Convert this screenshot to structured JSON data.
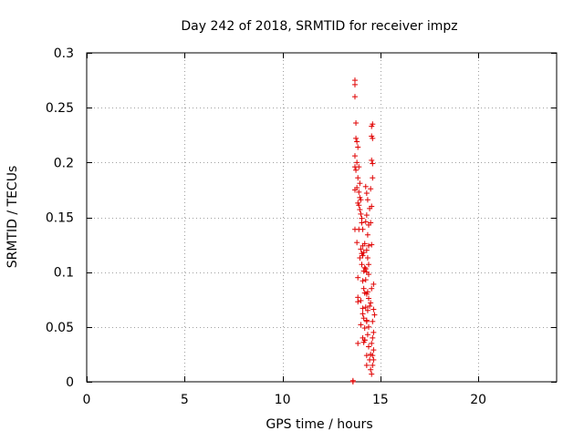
{
  "chart_data": {
    "type": "scatter",
    "title": "Day 242 of 2018, SRMTID for receiver impz",
    "xlabel": "GPS time / hours",
    "ylabel": "SRMTID / TECUs",
    "xlim": [
      0,
      24
    ],
    "ylim": [
      0,
      0.3
    ],
    "x_ticks": [
      0,
      5,
      10,
      15,
      20
    ],
    "x_tick_labels": [
      "0",
      "5",
      "10",
      "15",
      "20"
    ],
    "y_ticks": [
      0,
      0.05,
      0.1,
      0.15,
      0.2,
      0.25,
      0.3
    ],
    "y_tick_labels": [
      "0",
      "0.05",
      "0.1",
      "0.15",
      "0.2",
      "0.25",
      "0.3"
    ],
    "grid": true,
    "marker": "plus",
    "marker_color": "#e00000",
    "points": [
      [
        13.7,
        0.275
      ],
      [
        13.7,
        0.271
      ],
      [
        13.7,
        0.26
      ],
      [
        13.75,
        0.236
      ],
      [
        13.75,
        0.222
      ],
      [
        13.8,
        0.219
      ],
      [
        13.85,
        0.214
      ],
      [
        13.7,
        0.206
      ],
      [
        13.8,
        0.2
      ],
      [
        13.7,
        0.196
      ],
      [
        13.75,
        0.193
      ],
      [
        13.9,
        0.196
      ],
      [
        13.85,
        0.186
      ],
      [
        13.8,
        0.177
      ],
      [
        13.7,
        0.175
      ],
      [
        13.9,
        0.173
      ],
      [
        13.95,
        0.168
      ],
      [
        13.85,
        0.163
      ],
      [
        13.9,
        0.161
      ],
      [
        13.95,
        0.157
      ],
      [
        14.0,
        0.153
      ],
      [
        14.05,
        0.149
      ],
      [
        13.7,
        0.139
      ],
      [
        13.9,
        0.139
      ],
      [
        14.1,
        0.139
      ],
      [
        13.8,
        0.127
      ],
      [
        14.0,
        0.121
      ],
      [
        14.05,
        0.117
      ],
      [
        13.95,
        0.113
      ],
      [
        14.1,
        0.115
      ],
      [
        14.2,
        0.104
      ],
      [
        13.85,
        0.095
      ],
      [
        14.1,
        0.092
      ],
      [
        14.15,
        0.085
      ],
      [
        13.85,
        0.077
      ],
      [
        13.85,
        0.073
      ],
      [
        14.0,
        0.074
      ],
      [
        14.1,
        0.067
      ],
      [
        14.15,
        0.058
      ],
      [
        14.0,
        0.052
      ],
      [
        14.2,
        0.049
      ],
      [
        14.1,
        0.04
      ],
      [
        13.85,
        0.035
      ],
      [
        14.15,
        0.036
      ],
      [
        14.2,
        0.038
      ],
      [
        14.3,
        0.024
      ],
      [
        14.3,
        0.015
      ],
      [
        14.25,
        0.178
      ],
      [
        14.3,
        0.172
      ],
      [
        14.35,
        0.166
      ],
      [
        14.3,
        0.152
      ],
      [
        14.25,
        0.146
      ],
      [
        14.4,
        0.143
      ],
      [
        14.35,
        0.134
      ],
      [
        14.4,
        0.124
      ],
      [
        14.3,
        0.12
      ],
      [
        14.35,
        0.113
      ],
      [
        14.25,
        0.103
      ],
      [
        14.3,
        0.1
      ],
      [
        14.4,
        0.098
      ],
      [
        14.25,
        0.093
      ],
      [
        14.35,
        0.082
      ],
      [
        14.3,
        0.08
      ],
      [
        14.4,
        0.076
      ],
      [
        14.25,
        0.068
      ],
      [
        14.35,
        0.065
      ],
      [
        14.3,
        0.055
      ],
      [
        14.4,
        0.05
      ],
      [
        14.35,
        0.043
      ],
      [
        14.4,
        0.032
      ],
      [
        14.5,
        0.025
      ],
      [
        14.45,
        0.02
      ],
      [
        14.45,
        0.069
      ],
      [
        14.5,
        0.072
      ],
      [
        14.55,
        0.085
      ],
      [
        14.55,
        0.125
      ],
      [
        14.5,
        0.145
      ],
      [
        14.55,
        0.16
      ],
      [
        14.5,
        0.176
      ],
      [
        14.6,
        0.186
      ],
      [
        14.55,
        0.202
      ],
      [
        14.6,
        0.199
      ],
      [
        14.55,
        0.233
      ],
      [
        14.6,
        0.235
      ],
      [
        14.55,
        0.224
      ],
      [
        14.6,
        0.222
      ],
      [
        14.65,
        0.089
      ],
      [
        14.65,
        0.066
      ],
      [
        14.7,
        0.061
      ],
      [
        14.6,
        0.055
      ],
      [
        14.65,
        0.045
      ],
      [
        14.6,
        0.04
      ],
      [
        14.55,
        0.035
      ],
      [
        14.65,
        0.029
      ],
      [
        14.6,
        0.024
      ],
      [
        14.65,
        0.02
      ],
      [
        14.6,
        0.015
      ],
      [
        14.55,
        0.007
      ],
      [
        13.6,
        0.001
      ],
      [
        13.6,
        0.0
      ],
      [
        14.0,
        0.166
      ],
      [
        14.05,
        0.107
      ],
      [
        14.15,
        0.118
      ],
      [
        14.2,
        0.126
      ],
      [
        13.95,
        0.181
      ],
      [
        14.1,
        0.062
      ],
      [
        14.05,
        0.145
      ],
      [
        14.2,
        0.081
      ],
      [
        14.15,
        0.101
      ],
      [
        14.45,
        0.158
      ],
      [
        14.4,
        0.107
      ],
      [
        14.5,
        0.011
      ],
      [
        14.3,
        0.056
      ],
      [
        14.2,
        0.038
      ],
      [
        14.1,
        0.124
      ]
    ]
  }
}
